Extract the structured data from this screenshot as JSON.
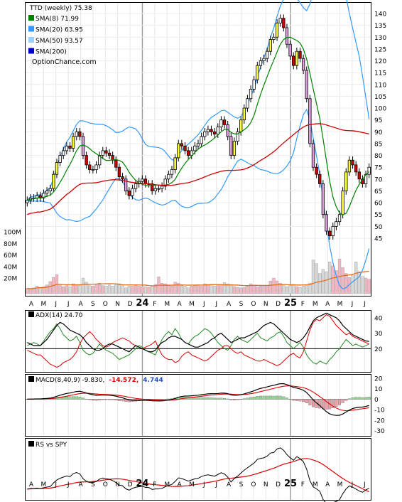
{
  "chart_data": {
    "type": "stock-chart",
    "ticker_label": "TTD (weekly) 75.38",
    "x_month_labels": [
      "A",
      "M",
      "J",
      "J",
      "A",
      "S",
      "O",
      "N",
      "D",
      "24",
      "F",
      "M",
      "A",
      "M",
      "J",
      "J",
      "A",
      "S",
      "O",
      "N",
      "D",
      "25",
      "F",
      "M",
      "A",
      "M",
      "J",
      "J"
    ],
    "price_panel": {
      "legend": [
        {
          "label": "SMA(8) 71.99",
          "color": "#008000"
        },
        {
          "label": "SMA(20) 63.95",
          "color": "#3399ff"
        },
        {
          "label": "SMA(50) 93.57",
          "color": "#9ad0ff"
        },
        {
          "label": "SMA(200)",
          "color": "#0000cc"
        }
      ],
      "credit": "OptionChance.com",
      "y_ticks": [
        45,
        50,
        55,
        60,
        65,
        70,
        75,
        80,
        85,
        90,
        95,
        100,
        105,
        110,
        115,
        120,
        125,
        130,
        135,
        140
      ],
      "ylim": [
        43,
        142
      ],
      "close": [
        61,
        62,
        62,
        63,
        62,
        64,
        65,
        66,
        72,
        77,
        80,
        82,
        84,
        83,
        88,
        90,
        88,
        80,
        76,
        74,
        74,
        76,
        80,
        82,
        81,
        80,
        78,
        75,
        71,
        70,
        65,
        63,
        66,
        68,
        69,
        70,
        68,
        68,
        65,
        66,
        66,
        67,
        70,
        72,
        74,
        79,
        85,
        84,
        82,
        80,
        82,
        84,
        85,
        88,
        90,
        91,
        90,
        89,
        92,
        95,
        93,
        88,
        80,
        86,
        90,
        95,
        100,
        104,
        108,
        112,
        118,
        120,
        121,
        124,
        129,
        130,
        136,
        138,
        134,
        127,
        122,
        118,
        124,
        121,
        116,
        104,
        85,
        75,
        72,
        68,
        55,
        48,
        46,
        50,
        52,
        55,
        65,
        73,
        78,
        76,
        73,
        70,
        68,
        72,
        75
      ],
      "volume_mil": [
        9,
        8,
        10,
        13,
        11,
        12,
        15,
        21,
        28,
        33,
        16,
        12,
        14,
        12,
        17,
        15,
        14,
        27,
        20,
        14,
        13,
        15,
        18,
        14,
        13,
        15,
        13,
        17,
        15,
        14,
        10,
        13,
        13,
        15,
        13,
        12,
        12,
        11,
        13,
        16,
        29,
        18,
        17,
        14,
        13,
        20,
        18,
        14,
        13,
        10,
        13,
        14,
        15,
        13,
        17,
        16,
        16,
        13,
        15,
        15,
        19,
        17,
        16,
        12,
        11,
        10,
        11,
        13,
        17,
        15,
        12,
        13,
        14,
        14,
        22,
        27,
        22,
        18,
        15,
        12,
        14,
        16,
        12,
        11,
        13,
        15,
        18,
        58,
        52,
        35,
        42,
        38,
        55,
        48,
        40,
        60,
        45,
        35,
        28,
        32,
        55,
        38,
        30,
        27,
        25
      ],
      "volume_axis_ticks": [
        "20M",
        "40M",
        "60M",
        "80M",
        "100M"
      ]
    },
    "adx_panel": {
      "label": "ADX(14) 24.70",
      "y_ticks": [
        20,
        30,
        40
      ],
      "reference_line": 20,
      "ylim": [
        5,
        45
      ],
      "adx": [
        24,
        23,
        22,
        22,
        22,
        24,
        26,
        29,
        32,
        35,
        37,
        36,
        34,
        32,
        31,
        30,
        29,
        27,
        24,
        22,
        20,
        19,
        19,
        20,
        22,
        23,
        23,
        22,
        21,
        20,
        19,
        18,
        20,
        22,
        21,
        20,
        19,
        18,
        18,
        19,
        22,
        24,
        25,
        27,
        28,
        28,
        27,
        26,
        24,
        23,
        22,
        21,
        21,
        22,
        23,
        24,
        26,
        27,
        29,
        30,
        28,
        26,
        24,
        25,
        26,
        27,
        27,
        28,
        29,
        30,
        31,
        33,
        35,
        36,
        37,
        36,
        34,
        32,
        30,
        28,
        26,
        25,
        24,
        25,
        27,
        30,
        34,
        38,
        40,
        41,
        42,
        43,
        42,
        41,
        40,
        38,
        35,
        33,
        31,
        29,
        28,
        27,
        26,
        25,
        24.7
      ],
      "plus_di": [
        22,
        23,
        24,
        23,
        22,
        25,
        28,
        31,
        33,
        36,
        33,
        29,
        27,
        25,
        26,
        28,
        24,
        19,
        17,
        16,
        17,
        20,
        23,
        21,
        19,
        18,
        17,
        15,
        13,
        14,
        15,
        16,
        18,
        20,
        22,
        21,
        19,
        18,
        17,
        16,
        21,
        26,
        29,
        31,
        29,
        33,
        30,
        26,
        24,
        23,
        26,
        28,
        29,
        31,
        33,
        32,
        30,
        27,
        24,
        22,
        20,
        19,
        22,
        26,
        28,
        26,
        25,
        24,
        26,
        28,
        30,
        27,
        26,
        25,
        27,
        28,
        30,
        31,
        28,
        24,
        22,
        20,
        22,
        24,
        21,
        16,
        13,
        11,
        10,
        12,
        11,
        10,
        13,
        15,
        18,
        20,
        23,
        26,
        24,
        22,
        23,
        22,
        21,
        22,
        23
      ],
      "minus_di": [
        19,
        18,
        17,
        16,
        16,
        14,
        12,
        10,
        9,
        8,
        9,
        11,
        12,
        13,
        15,
        18,
        23,
        27,
        29,
        31,
        29,
        26,
        24,
        22,
        21,
        22,
        24,
        25,
        26,
        27,
        26,
        25,
        23,
        22,
        21,
        20,
        21,
        22,
        23,
        25,
        20,
        16,
        14,
        13,
        13,
        11,
        12,
        15,
        17,
        18,
        16,
        15,
        14,
        13,
        12,
        13,
        15,
        17,
        19,
        20,
        22,
        22,
        20,
        18,
        17,
        18,
        16,
        15,
        14,
        13,
        12,
        12,
        13,
        12,
        11,
        10,
        9,
        10,
        12,
        14,
        16,
        17,
        15,
        14,
        18,
        25,
        32,
        37,
        39,
        38,
        40,
        42,
        41,
        38,
        35,
        33,
        31,
        29,
        30,
        28,
        27,
        26,
        25,
        24,
        23
      ]
    },
    "macd_panel": {
      "label": "MACD(8,40,9) -9.830,",
      "values_label": [
        "-14.572,",
        "4.744"
      ],
      "values_label_colors": [
        "#dd0000",
        "#1f4fbf"
      ],
      "y_ticks": [
        -30,
        -20,
        -10,
        0,
        10,
        20
      ],
      "ylim": [
        -35,
        24
      ]
    },
    "rs_panel": {
      "label": "RS vs SPY"
    }
  }
}
